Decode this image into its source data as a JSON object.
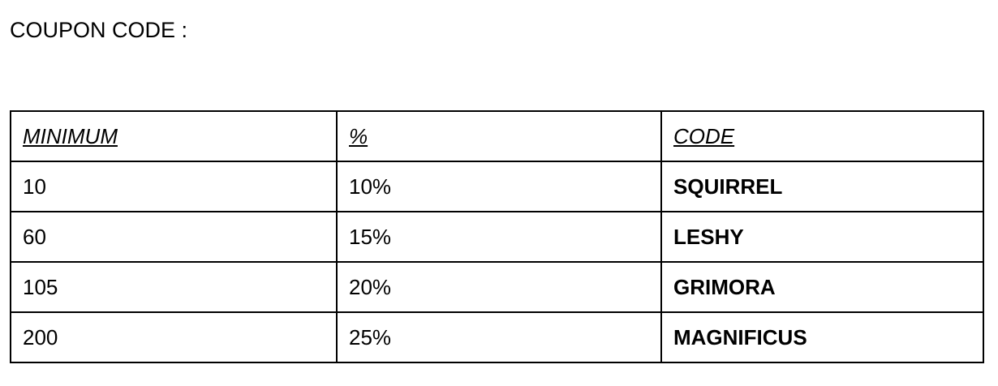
{
  "title": "COUPON CODE :",
  "table": {
    "headers": [
      "MINIMUM",
      "%",
      "CODE"
    ],
    "rows": [
      [
        "10",
        "10%",
        "SQUIRREL"
      ],
      [
        "60",
        "15%",
        "LESHY"
      ],
      [
        "105",
        "20%",
        "GRIMORA"
      ],
      [
        "200",
        "25%",
        "MAGNIFICUS"
      ]
    ]
  }
}
